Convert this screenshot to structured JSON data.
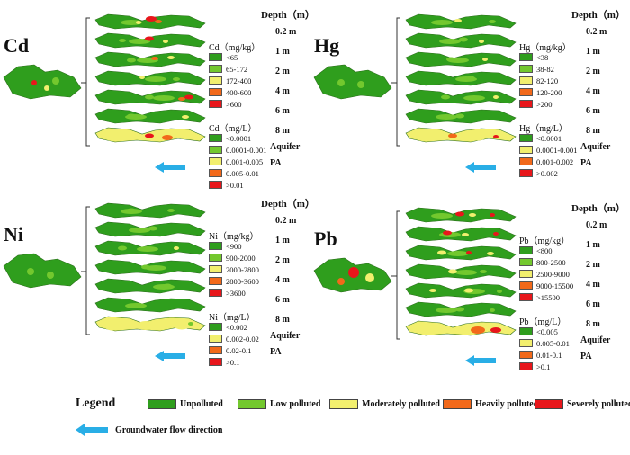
{
  "colors": {
    "unpolluted": "#2f9e1d",
    "low": "#73c82e",
    "moderate": "#f2ef6e",
    "heavy": "#f2691a",
    "severe": "#e8161b",
    "arrow": "#29aee6"
  },
  "depth_title": "Depth（m）",
  "depth_labels": [
    "0.2 m",
    "1 m",
    "2 m",
    "4 m",
    "6 m",
    "8 m",
    "Aquifer",
    "PA"
  ],
  "panels": [
    {
      "title": "Cd",
      "soil_title": "Cd（mg/kg）",
      "soil_ranges": [
        "<65",
        "65-172",
        "172-400",
        "400-600",
        ">600"
      ],
      "water_title": "Cd（mg/L）",
      "water_ranges": [
        "<0.0001",
        "0.0001-0.001",
        "0.001-0.005",
        "0.005-0.01",
        ">0.01"
      ]
    },
    {
      "title": "Hg",
      "soil_title": "Hg（mg/kg）",
      "soil_ranges": [
        "<38",
        "38-82",
        "82-120",
        "120-200",
        ">200"
      ],
      "water_title": "Hg（mg/L）",
      "water_ranges": [
        "<0.0001",
        "0.0001-0.001",
        "0.001-0.002",
        ">0.002"
      ]
    },
    {
      "title": "Ni",
      "soil_title": "Ni（mg/kg）",
      "soil_ranges": [
        "<900",
        "900-2000",
        "2000-2800",
        "2800-3600",
        ">3600"
      ],
      "water_title": "Ni（mg/L）",
      "water_ranges": [
        "<0.002",
        "0.002-0.02",
        "0.02-0.1",
        ">0.1"
      ]
    },
    {
      "title": "Pb",
      "soil_title": "Pb（mg/kg）",
      "soil_ranges": [
        "<800",
        "800-2500",
        "2500-9000",
        "9000-15500",
        ">15500"
      ],
      "water_title": "Pb（mg/L）",
      "water_ranges": [
        "<0.005",
        "0.005-0.01",
        "0.01-0.1",
        ">0.1"
      ]
    }
  ],
  "legend": {
    "title": "Legend",
    "items": [
      "Unpolluted",
      "Low polluted",
      "Moderately polluted",
      "Heavily polluted",
      "Severely polluted"
    ],
    "flow_label": "Groundwater flow direction",
    "flow_icon": "arrow-left-icon"
  }
}
